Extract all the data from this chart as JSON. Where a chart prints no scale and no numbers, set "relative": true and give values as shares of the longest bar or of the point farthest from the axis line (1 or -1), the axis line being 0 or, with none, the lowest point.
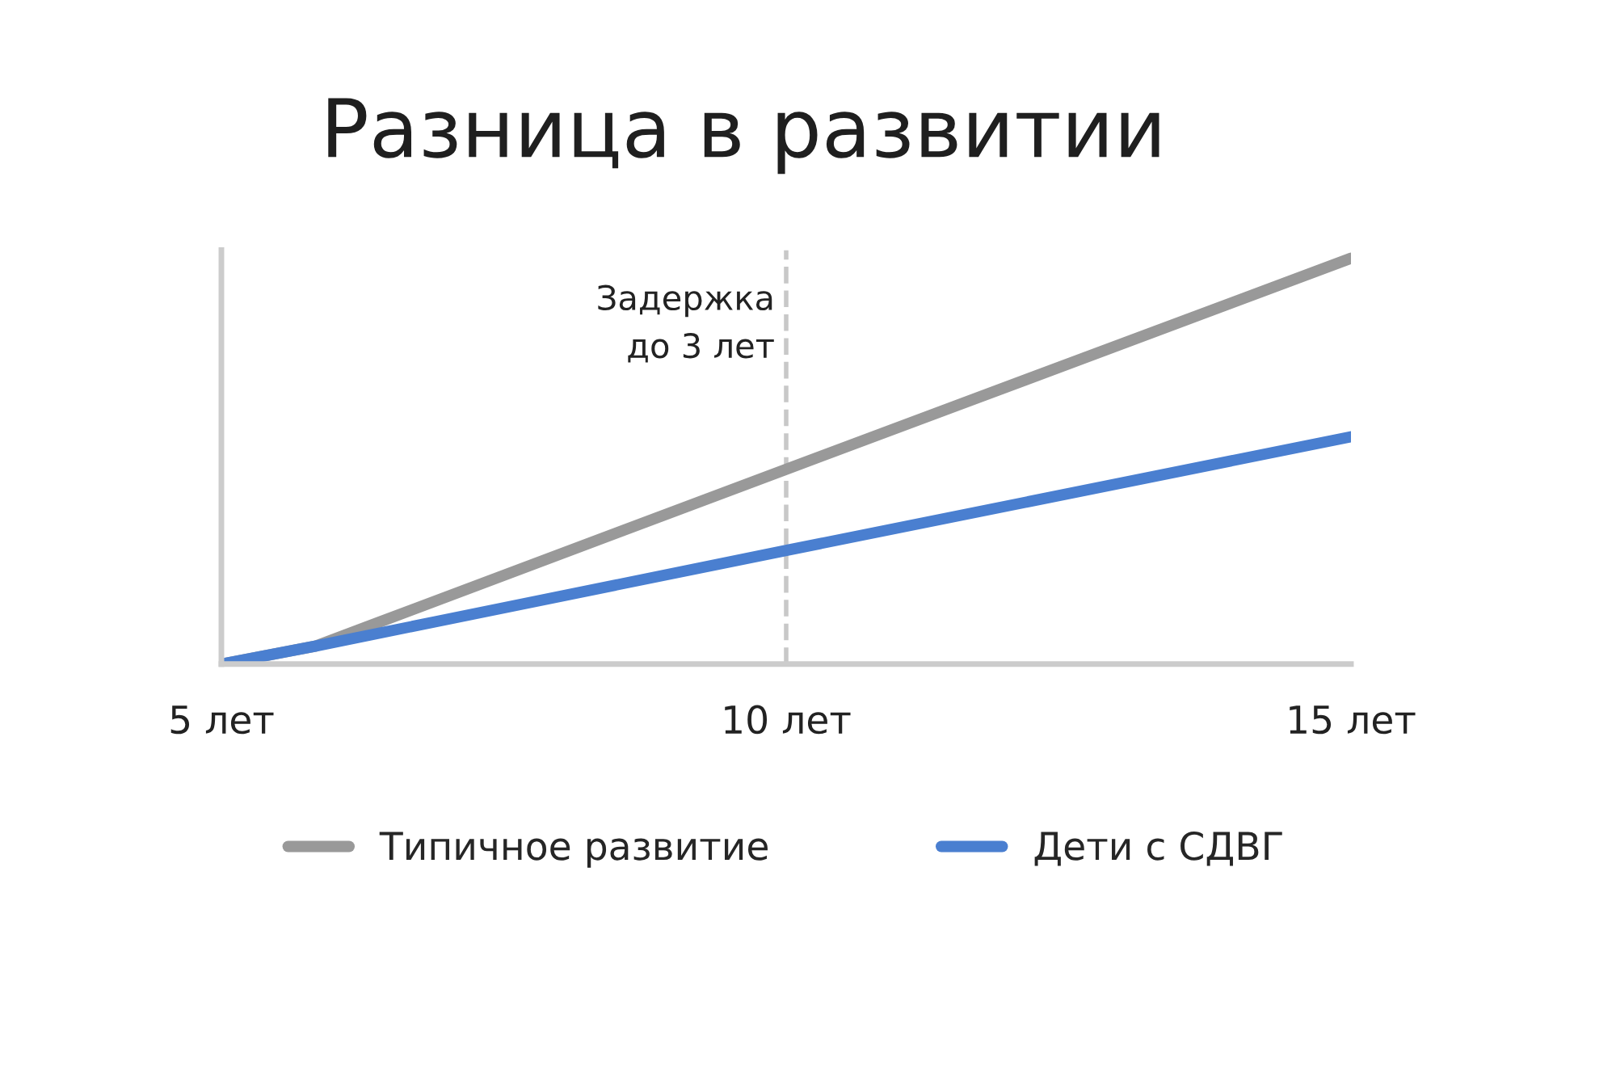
{
  "chart_data": {
    "type": "line",
    "title": "Разница в развитии",
    "relative": true,
    "x": [
      5,
      5.83,
      10,
      15
    ],
    "series": [
      {
        "name": "Типичное развитие",
        "color": "#999999",
        "values": [
          0,
          0.044,
          0.48,
          1
        ]
      },
      {
        "name": "Дети с СДВГ",
        "color": "#4a7fd0",
        "values": [
          0,
          0.044,
          0.28,
          0.56
        ]
      }
    ],
    "xlim": [
      5,
      15
    ],
    "xticks": [
      {
        "value": 5,
        "label": "5 лет"
      },
      {
        "value": 10,
        "label": "10 лет"
      },
      {
        "value": 15,
        "label": "15 лет"
      }
    ],
    "ref_lines": [
      {
        "axis": "x",
        "value": 10,
        "label": "Задержка\nдо 3 лет",
        "color": "#c8c8c8",
        "line_style": "dashed"
      }
    ],
    "grid": false,
    "legend": "bottom",
    "line_style": "solid",
    "marker": "none"
  }
}
